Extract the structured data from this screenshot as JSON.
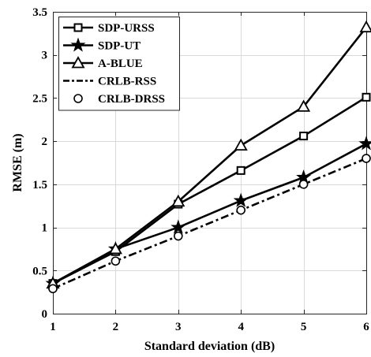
{
  "chart_data": {
    "type": "line",
    "x": [
      1,
      2,
      3,
      4,
      5,
      6
    ],
    "xlabel": "Standard deviation (dB)",
    "ylabel": "RMSE (m)",
    "xlim": [
      1,
      6
    ],
    "ylim": [
      0,
      3.5
    ],
    "xticks": [
      "1",
      "2",
      "3",
      "4",
      "5",
      "6"
    ],
    "yticks": [
      "0",
      "0.5",
      "1",
      "1.5",
      "2",
      "2.5",
      "3",
      "3.5"
    ],
    "grid": true,
    "legend_position": "top-left",
    "series": [
      {
        "name": "SDP-URSS",
        "values": [
          0.35,
          0.72,
          1.27,
          1.66,
          2.06,
          2.51
        ],
        "marker": "square",
        "line_style": "solid",
        "color": "#000000"
      },
      {
        "name": "SDP-UT",
        "values": [
          0.35,
          0.75,
          1.0,
          1.31,
          1.58,
          1.97
        ],
        "marker": "star",
        "line_style": "solid",
        "color": "#000000"
      },
      {
        "name": "A-BLUE",
        "values": [
          0.35,
          0.75,
          1.3,
          1.95,
          2.4,
          3.32
        ],
        "marker": "triangle",
        "line_style": "solid",
        "color": "#000000"
      },
      {
        "name": "CRLB-RSS",
        "values": [
          0.29,
          0.61,
          0.9,
          1.2,
          1.5,
          1.8
        ],
        "marker": "none",
        "line_style": "dash-dot",
        "color": "#000000"
      },
      {
        "name": "CRLB-DRSS",
        "values": [
          0.29,
          0.61,
          0.9,
          1.2,
          1.5,
          1.8
        ],
        "marker": "circle",
        "line_style": "none",
        "color": "#000000"
      }
    ]
  }
}
